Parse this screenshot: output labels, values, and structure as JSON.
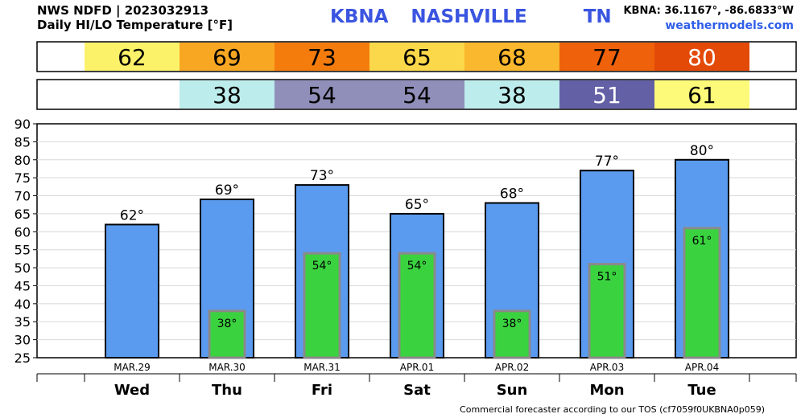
{
  "header": {
    "title_line1": "NWS NDFD | 2023032913",
    "title_line2": "Daily HI/LO Temperature [°F]",
    "station_title": "KBNA  NASHVILLE     TN",
    "coords": "KBNA: 36.1167°, -86.6833°W",
    "site": "weathermodels.com"
  },
  "footer": "Commercial forecaster according to our TOS (cf7059f0UKBNA0p059)",
  "colors": {
    "hi_bar": "#5b9bef",
    "lo_bar": "#3ad33f",
    "lo_bar_border": "#8a8a8a",
    "hi_62": "#fcf26a",
    "hi_69": "#f8a722",
    "hi_73": "#f47c0d",
    "hi_65": "#fbd84a",
    "hi_68": "#f9b82d",
    "hi_77": "#ef610a",
    "hi_80": "#e34a08",
    "lo_38": "#bcecec",
    "lo_54": "#908fba",
    "lo_51": "#6460a6",
    "lo_61": "#fcfa78"
  },
  "chart_data": {
    "type": "bar",
    "categories": [
      "Wed",
      "Thu",
      "Fri",
      "Sat",
      "Sun",
      "Mon",
      "Tue"
    ],
    "dates": [
      "MAR.29",
      "MAR.30",
      "MAR.31",
      "APR.01",
      "APR.02",
      "APR.03",
      "APR.04"
    ],
    "series": [
      {
        "values": [
          62,
          69,
          73,
          65,
          68,
          77,
          80
        ]
      },
      {
        "values": [
          null,
          38,
          54,
          54,
          38,
          51,
          61
        ]
      }
    ],
    "ylim": [
      25,
      90
    ],
    "yticks": [
      25,
      30,
      35,
      40,
      45,
      50,
      55,
      60,
      65,
      70,
      75,
      80,
      85,
      90
    ],
    "grid": true,
    "hi_row": [
      "62",
      "69",
      "73",
      "65",
      "68",
      "77",
      "80"
    ],
    "lo_row": [
      "",
      "38",
      "54",
      "54",
      "38",
      "51",
      "61"
    ]
  }
}
